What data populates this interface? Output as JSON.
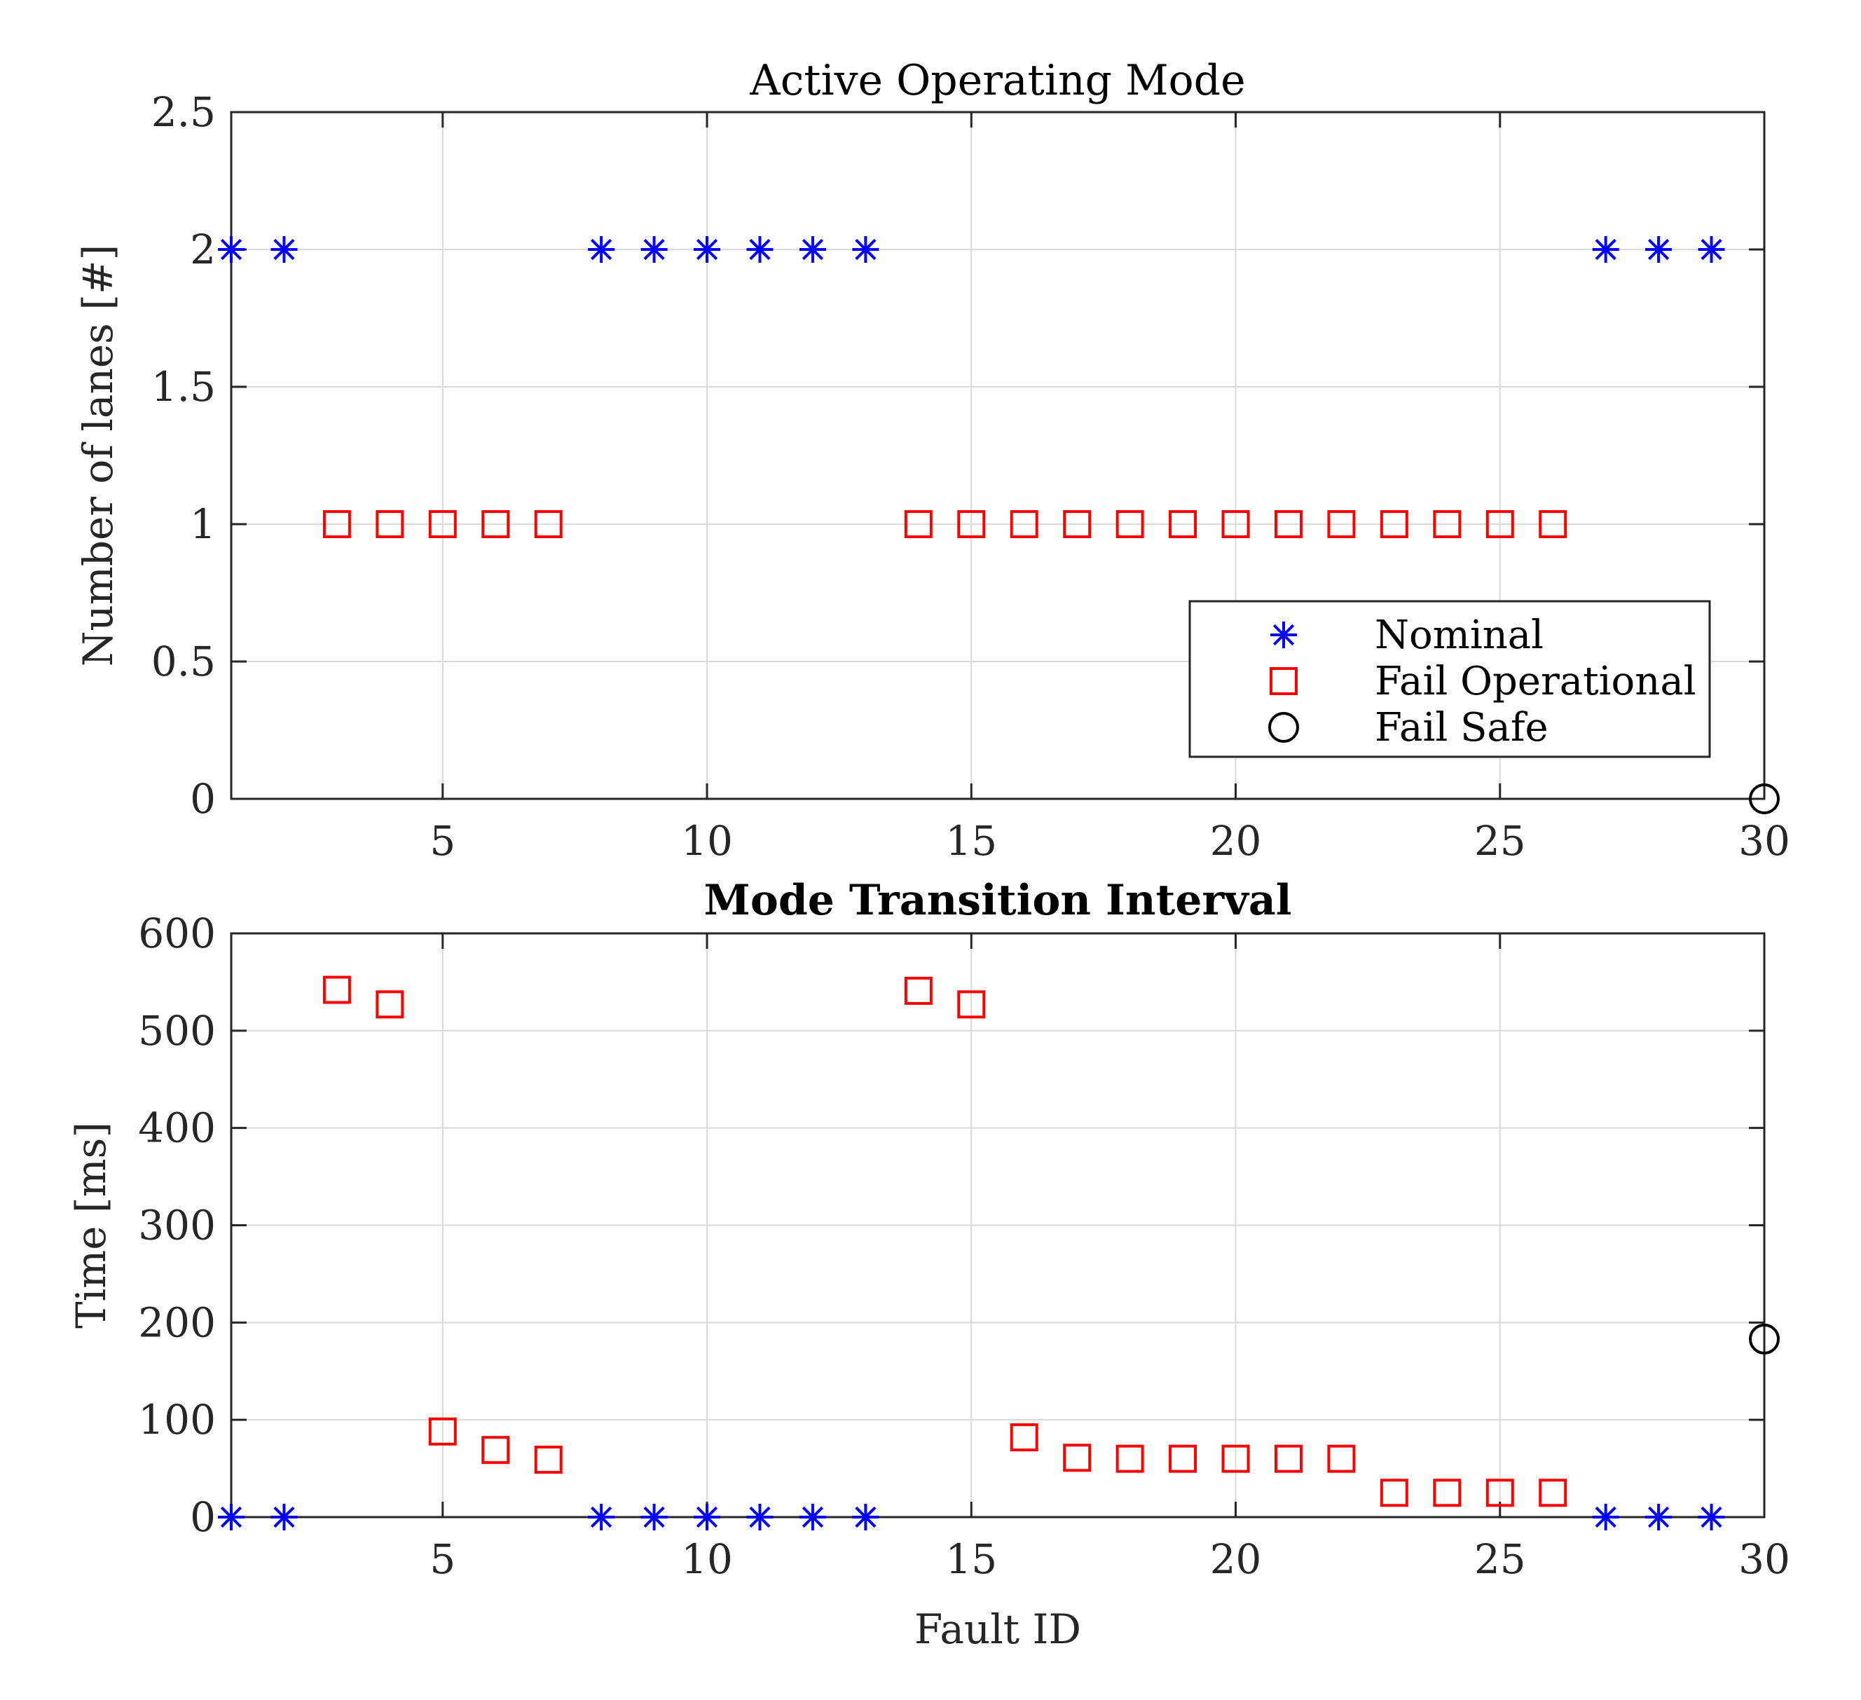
{
  "colors": {
    "nominal": "#0000ff",
    "fail_operational": "#ff0000",
    "fail_safe": "#000000",
    "axis": "#262626",
    "grid": "#d9d9d9"
  },
  "chart_data": [
    {
      "type": "scatter",
      "title": "Active Operating Mode",
      "title_bold": false,
      "xlabel": "",
      "ylabel": "Number of lanes [#]",
      "xlim": [
        1,
        30
      ],
      "ylim": [
        0,
        2.5
      ],
      "xticks": [
        5,
        10,
        15,
        20,
        25,
        30
      ],
      "yticks": [
        0,
        0.5,
        1,
        1.5,
        2,
        2.5
      ],
      "ytick_labels": [
        "0",
        "0.5",
        "1",
        "1.5",
        "2",
        "2.5"
      ],
      "grid": true,
      "legend": {
        "placement": "lower-right",
        "visible": true
      },
      "series": [
        {
          "name": "Nominal",
          "marker": "asterisk",
          "color": "#0000ff",
          "x": [
            1,
            2,
            8,
            9,
            10,
            11,
            12,
            13,
            27,
            28,
            29
          ],
          "y": [
            2,
            2,
            2,
            2,
            2,
            2,
            2,
            2,
            2,
            2,
            2
          ]
        },
        {
          "name": "Fail Operational",
          "marker": "square",
          "color": "#ff0000",
          "x": [
            3,
            4,
            5,
            6,
            7,
            14,
            15,
            16,
            17,
            18,
            19,
            20,
            21,
            22,
            23,
            24,
            25,
            26
          ],
          "y": [
            1,
            1,
            1,
            1,
            1,
            1,
            1,
            1,
            1,
            1,
            1,
            1,
            1,
            1,
            1,
            1,
            1,
            1
          ]
        },
        {
          "name": "Fail Safe",
          "marker": "circle",
          "color": "#000000",
          "x": [
            30
          ],
          "y": [
            0
          ]
        }
      ]
    },
    {
      "type": "scatter",
      "title": "Mode Transition Interval",
      "title_bold": true,
      "xlabel": "Fault ID",
      "ylabel": "Time [ms]",
      "xlim": [
        1,
        30
      ],
      "ylim": [
        0,
        600
      ],
      "xticks": [
        5,
        10,
        15,
        20,
        25,
        30
      ],
      "yticks": [
        0,
        100,
        200,
        300,
        400,
        500,
        600
      ],
      "ytick_labels": [
        "0",
        "100",
        "200",
        "300",
        "400",
        "500",
        "600"
      ],
      "grid": true,
      "legend": {
        "visible": false
      },
      "series": [
        {
          "marker": "asterisk",
          "color": "#0000ff",
          "x": [
            1,
            2,
            8,
            9,
            10,
            11,
            12,
            13,
            27,
            28,
            29
          ],
          "y": [
            0,
            0,
            0,
            0,
            0,
            0,
            0,
            0,
            0,
            0,
            0
          ]
        },
        {
          "marker": "square",
          "color": "#ff0000",
          "x": [
            3,
            4,
            5,
            6,
            7,
            14,
            15,
            16,
            17,
            18,
            19,
            20,
            21,
            22,
            23,
            24,
            25,
            26
          ],
          "y": [
            542,
            527,
            88,
            69,
            59,
            541,
            527,
            82,
            61,
            60,
            60,
            60,
            60,
            60,
            25,
            25,
            25,
            25
          ]
        },
        {
          "marker": "circle",
          "color": "#000000",
          "x": [
            30
          ],
          "y": [
            183
          ]
        }
      ]
    }
  ]
}
